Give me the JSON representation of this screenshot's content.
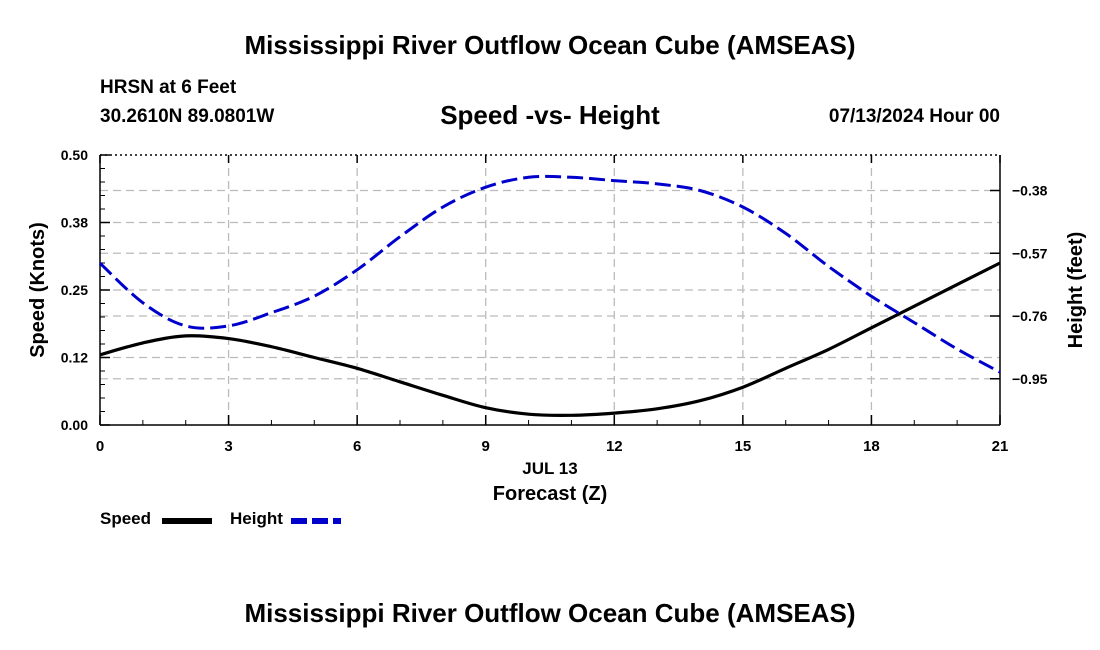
{
  "header": {
    "title": "Mississippi River Outflow Ocean Cube (AMSEAS)",
    "station": "HRSN at 6 Feet",
    "coords": "30.2610N  89.0801W",
    "subtitle": "Speed -vs- Height",
    "datetime": "07/13/2024 Hour 00"
  },
  "footer": {
    "title": "Mississippi River Outflow Ocean Cube (AMSEAS)"
  },
  "legend": {
    "speed_label": "Speed",
    "height_label": "Height"
  },
  "colors": {
    "speed": "#000000",
    "height": "#0000cc",
    "grid": "#bbbbbb"
  },
  "chart_data": {
    "type": "line",
    "title": "Speed -vs- Height",
    "xlabel": "Forecast (Z)",
    "xlabel_date": "JUL 13",
    "ylabel": "Speed (Knots)",
    "y2label": "Height (feet)",
    "xlim": [
      0,
      21
    ],
    "ylim": [
      0,
      0.5
    ],
    "y2lim": [
      -1.09,
      -0.2725
    ],
    "xticks": [
      0,
      3,
      6,
      9,
      12,
      15,
      18,
      21
    ],
    "xtick_labels": [
      "0",
      "3",
      "6",
      "9",
      "12",
      "15",
      "18",
      "21"
    ],
    "yticks": [
      0,
      0.125,
      0.25,
      0.375,
      0.5
    ],
    "ytick_labels": [
      "0.00",
      "0.12",
      "0.25",
      "0.38",
      "0.50"
    ],
    "y2ticks": [
      -0.95,
      -0.76,
      -0.57,
      -0.38
    ],
    "y2tick_labels": [
      "−0.95",
      "−0.76",
      "−0.57",
      "−0.38"
    ],
    "grid": true,
    "legend_position": "bottom-left",
    "x": [
      0,
      1,
      2,
      3,
      4,
      5,
      6,
      7,
      8,
      9,
      10,
      11,
      12,
      13,
      14,
      15,
      16,
      17,
      18,
      19,
      20,
      21
    ],
    "series": [
      {
        "name": "Speed",
        "axis": "left",
        "values": [
          0.13,
          0.152,
          0.165,
          0.16,
          0.145,
          0.125,
          0.105,
          0.08,
          0.055,
          0.032,
          0.02,
          0.018,
          0.022,
          0.03,
          0.045,
          0.07,
          0.105,
          0.14,
          0.18,
          0.22,
          0.26,
          0.3
        ]
      },
      {
        "name": "Height",
        "axis": "right",
        "values": [
          -0.6,
          -0.72,
          -0.79,
          -0.79,
          -0.75,
          -0.7,
          -0.62,
          -0.52,
          -0.43,
          -0.37,
          -0.34,
          -0.34,
          -0.35,
          -0.36,
          -0.38,
          -0.43,
          -0.51,
          -0.61,
          -0.7,
          -0.78,
          -0.86,
          -0.93
        ]
      }
    ]
  }
}
